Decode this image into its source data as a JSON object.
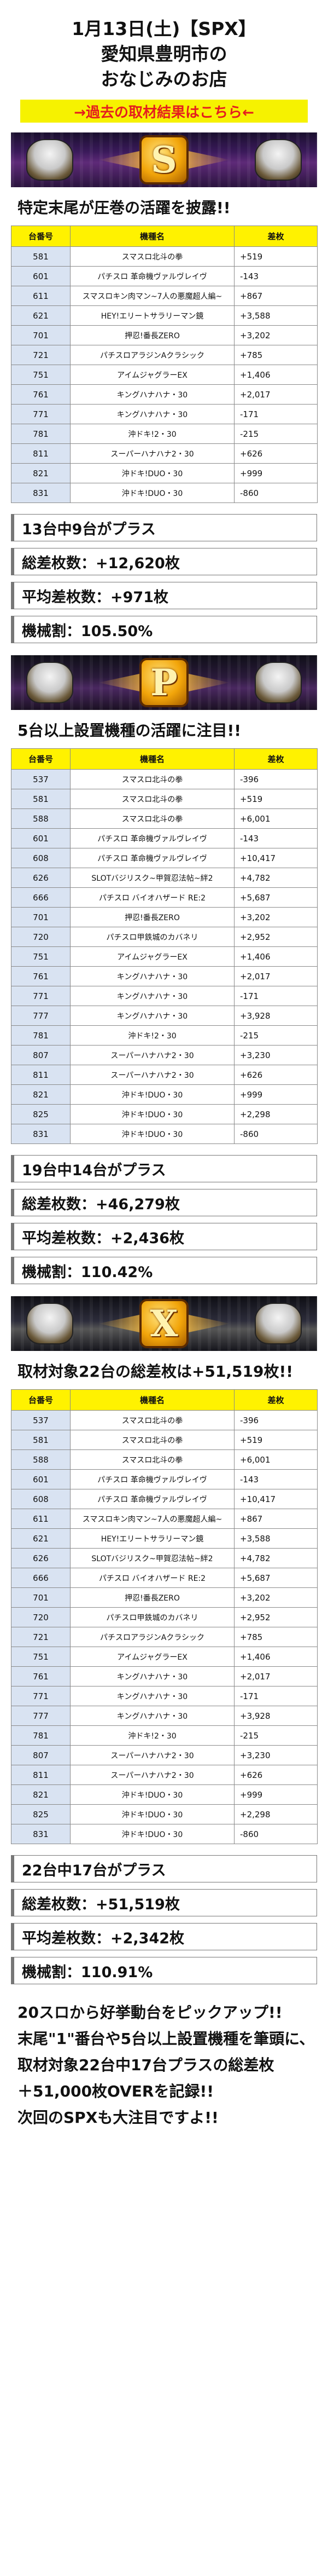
{
  "header": {
    "line1": "1月13日(土)【SPX】",
    "line2": "愛知県豊明市の",
    "line3": "おなじみのお店",
    "link_label": "→過去の取材結果はこちら←"
  },
  "table_headers": {
    "num": "台番号",
    "name": "機種名",
    "diff": "差枚"
  },
  "section_s": {
    "emblem_letter": "S",
    "title": "特定末尾が圧巻の活躍を披露!!",
    "rows": [
      {
        "num": "581",
        "name": "スマスロ北斗の拳",
        "diff": "+519"
      },
      {
        "num": "601",
        "name": "パチスロ 革命機ヴァルヴレイヴ",
        "diff": "-143"
      },
      {
        "num": "611",
        "name": "スマスロキン肉マン~7人の悪魔超人編~",
        "diff": "+867"
      },
      {
        "num": "621",
        "name": "HEY!エリートサラリーマン鏡",
        "diff": "+3,588"
      },
      {
        "num": "701",
        "name": "押忍!番長ZERO",
        "diff": "+3,202"
      },
      {
        "num": "721",
        "name": "パチスロアラジンAクラシック",
        "diff": "+785"
      },
      {
        "num": "751",
        "name": "アイムジャグラーEX",
        "diff": "+1,406"
      },
      {
        "num": "761",
        "name": "キングハナハナ・30",
        "diff": "+2,017"
      },
      {
        "num": "771",
        "name": "キングハナハナ・30",
        "diff": "-171"
      },
      {
        "num": "781",
        "name": "沖ドキ!2・30",
        "diff": "-215"
      },
      {
        "num": "811",
        "name": "スーパーハナハナ2・30",
        "diff": "+626"
      },
      {
        "num": "821",
        "name": "沖ドキ!DUO・30",
        "diff": "+999"
      },
      {
        "num": "831",
        "name": "沖ドキ!DUO・30",
        "diff": "-860"
      }
    ],
    "stats": [
      "13台中9台がプラス",
      "総差枚数：+12,620枚",
      "平均差枚数：+971枚",
      "機械割：105.50%"
    ]
  },
  "section_p": {
    "emblem_letter": "P",
    "title": "5台以上設置機種の活躍に注目!!",
    "rows": [
      {
        "num": "537",
        "name": "スマスロ北斗の拳",
        "diff": "-396"
      },
      {
        "num": "581",
        "name": "スマスロ北斗の拳",
        "diff": "+519"
      },
      {
        "num": "588",
        "name": "スマスロ北斗の拳",
        "diff": "+6,001"
      },
      {
        "num": "601",
        "name": "パチスロ 革命機ヴァルヴレイヴ",
        "diff": "-143"
      },
      {
        "num": "608",
        "name": "パチスロ 革命機ヴァルヴレイヴ",
        "diff": "+10,417"
      },
      {
        "num": "626",
        "name": "SLOTバジリスク~甲賀忍法帖~絆2",
        "diff": "+4,782"
      },
      {
        "num": "666",
        "name": "パチスロ バイオハザード RE:2",
        "diff": "+5,687"
      },
      {
        "num": "701",
        "name": "押忍!番長ZERO",
        "diff": "+3,202"
      },
      {
        "num": "720",
        "name": "パチスロ甲鉄城のカバネリ",
        "diff": "+2,952"
      },
      {
        "num": "751",
        "name": "アイムジャグラーEX",
        "diff": "+1,406"
      },
      {
        "num": "761",
        "name": "キングハナハナ・30",
        "diff": "+2,017"
      },
      {
        "num": "771",
        "name": "キングハナハナ・30",
        "diff": "-171"
      },
      {
        "num": "777",
        "name": "キングハナハナ・30",
        "diff": "+3,928"
      },
      {
        "num": "781",
        "name": "沖ドキ!2・30",
        "diff": "-215"
      },
      {
        "num": "807",
        "name": "スーパーハナハナ2・30",
        "diff": "+3,230"
      },
      {
        "num": "811",
        "name": "スーパーハナハナ2・30",
        "diff": "+626"
      },
      {
        "num": "821",
        "name": "沖ドキ!DUO・30",
        "diff": "+999"
      },
      {
        "num": "825",
        "name": "沖ドキ!DUO・30",
        "diff": "+2,298"
      },
      {
        "num": "831",
        "name": "沖ドキ!DUO・30",
        "diff": "-860"
      }
    ],
    "stats": [
      "19台中14台がプラス",
      "総差枚数：+46,279枚",
      "平均差枚数：+2,436枚",
      "機械割：110.42%"
    ]
  },
  "section_x": {
    "emblem_letter": "X",
    "title": "取材対象22台の総差枚は+51,519枚!!",
    "rows": [
      {
        "num": "537",
        "name": "スマスロ北斗の拳",
        "diff": "-396"
      },
      {
        "num": "581",
        "name": "スマスロ北斗の拳",
        "diff": "+519"
      },
      {
        "num": "588",
        "name": "スマスロ北斗の拳",
        "diff": "+6,001"
      },
      {
        "num": "601",
        "name": "パチスロ 革命機ヴァルヴレイヴ",
        "diff": "-143"
      },
      {
        "num": "608",
        "name": "パチスロ 革命機ヴァルヴレイヴ",
        "diff": "+10,417"
      },
      {
        "num": "611",
        "name": "スマスロキン肉マン~7人の悪魔超人編~",
        "diff": "+867"
      },
      {
        "num": "621",
        "name": "HEY!エリートサラリーマン鏡",
        "diff": "+3,588"
      },
      {
        "num": "626",
        "name": "SLOTバジリスク~甲賀忍法帖~絆2",
        "diff": "+4,782"
      },
      {
        "num": "666",
        "name": "パチスロ バイオハザード RE:2",
        "diff": "+5,687"
      },
      {
        "num": "701",
        "name": "押忍!番長ZERO",
        "diff": "+3,202"
      },
      {
        "num": "720",
        "name": "パチスロ甲鉄城のカバネリ",
        "diff": "+2,952"
      },
      {
        "num": "721",
        "name": "パチスロアラジンAクラシック",
        "diff": "+785"
      },
      {
        "num": "751",
        "name": "アイムジャグラーEX",
        "diff": "+1,406"
      },
      {
        "num": "761",
        "name": "キングハナハナ・30",
        "diff": "+2,017"
      },
      {
        "num": "771",
        "name": "キングハナハナ・30",
        "diff": "-171"
      },
      {
        "num": "777",
        "name": "キングハナハナ・30",
        "diff": "+3,928"
      },
      {
        "num": "781",
        "name": "沖ドキ!2・30",
        "diff": "-215"
      },
      {
        "num": "807",
        "name": "スーパーハナハナ2・30",
        "diff": "+3,230"
      },
      {
        "num": "811",
        "name": "スーパーハナハナ2・30",
        "diff": "+626"
      },
      {
        "num": "821",
        "name": "沖ドキ!DUO・30",
        "diff": "+999"
      },
      {
        "num": "825",
        "name": "沖ドキ!DUO・30",
        "diff": "+2,298"
      },
      {
        "num": "831",
        "name": "沖ドキ!DUO・30",
        "diff": "-860"
      }
    ],
    "stats": [
      "22台中17台がプラス",
      "総差枚数：+51,519枚",
      "平均差枚数：+2,342枚",
      "機械割：110.91%"
    ]
  },
  "footer": {
    "lines": [
      "20スロから好挙動台をピックアップ!!",
      "末尾\"1\"番台や5台以上設置機種を筆頭に、",
      "取材対象22台中17台プラスの総差枚",
      "＋51,000枚OVERを記録!!",
      "次回のSPXも大注目ですよ!!"
    ]
  },
  "colors": {
    "header_yellow": "#fff200",
    "link_bg": "#f6f200",
    "link_text": "#e51e1e",
    "num_cell_bg": "#d9e3f2"
  },
  "icons": {
    "emblem_s": "gold-s-emblem-with-eagles",
    "emblem_p": "gold-p-emblem-with-winged-figures",
    "emblem_x": "gold-x-emblem-with-knights"
  }
}
